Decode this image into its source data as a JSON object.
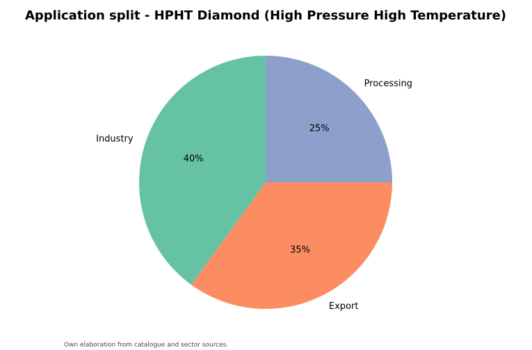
{
  "chart_data": {
    "type": "pie",
    "title": "Application split - HPHT Diamond (High Pressure High Temperature)",
    "slices": [
      {
        "label": "Processing",
        "value": 25,
        "pct_label": "25%",
        "color": "#8da0cb"
      },
      {
        "label": "Export",
        "value": 35,
        "pct_label": "35%",
        "color": "#fc8d62"
      },
      {
        "label": "Industry",
        "value": 40,
        "pct_label": "40%",
        "color": "#66c2a5"
      }
    ],
    "start_angle": "top",
    "direction": "clockwise",
    "legend": "none"
  },
  "footer": {
    "source": "Own elaboration from catalogue and sector sources."
  }
}
